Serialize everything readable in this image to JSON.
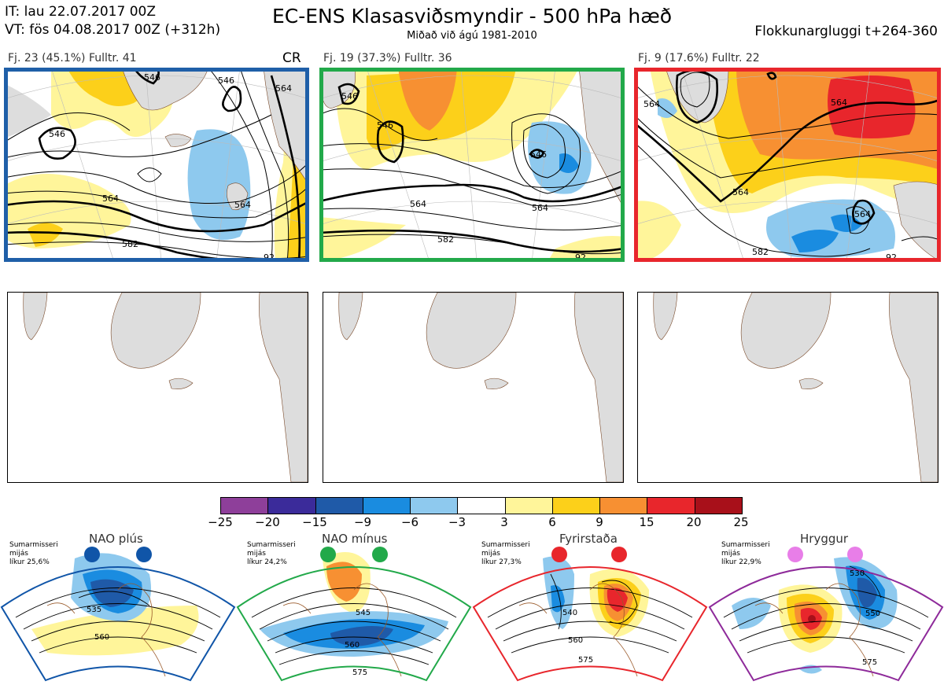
{
  "header": {
    "it": "IT: lau 22.07.2017 00Z",
    "vt": "VT: fös 04.08.2017 00Z  (+312h)",
    "title": "EC-ENS Klasasviðsmyndir - 500 hPa hæð",
    "subtitle": "Miðað við ágú 1981-2010",
    "window": "Flokkunargluggi t+264-360"
  },
  "clusters": [
    {
      "label": "Fj. 23 (45.1%)   Fulltr. 41",
      "tag": "CR",
      "border_color": "#1f5fa8",
      "contours": [
        "546",
        "546",
        "564",
        "564",
        "582",
        "92",
        "546",
        "564"
      ]
    },
    {
      "label": "Fj. 19 (37.3%)   Fulltr. 36",
      "tag": "",
      "border_color": "#22a94a",
      "contours": [
        "546",
        "546",
        "564",
        "582",
        "564",
        "546",
        "92"
      ]
    },
    {
      "label": "Fj. 9 (17.6%)   Fulltr. 22",
      "tag": "",
      "border_color": "#e8262c",
      "contours": [
        "564",
        "564",
        "564",
        "582",
        "564",
        "92"
      ]
    }
  ],
  "colorbar": {
    "ticks": [
      "−25",
      "−20",
      "−15",
      "−9",
      "−6",
      "−3",
      "3",
      "6",
      "9",
      "15",
      "20",
      "25"
    ],
    "colors": [
      "#8e3f9a",
      "#3b2b9a",
      "#1f5aa8",
      "#1a8ce0",
      "#8ec9ee",
      "#ffffff",
      "#fff59a",
      "#fcd01a",
      "#f79032",
      "#e8262c",
      "#a8101a"
    ]
  },
  "regimes": [
    {
      "title": "NAO plús",
      "line1": "Sumarmisseri",
      "line2": "mijás",
      "line3": "líkur 25,6%",
      "color": "#1055a8",
      "labels": [
        "535",
        "560"
      ]
    },
    {
      "title": "NAO mínus",
      "line1": "Sumarmisseri",
      "line2": "mijás",
      "line3": "líkur 24,2%",
      "color": "#22a94a",
      "labels": [
        "545",
        "560",
        "575"
      ]
    },
    {
      "title": "Fyrirstaða",
      "line1": "Sumarmisseri",
      "line2": "mijás",
      "line3": "líkur 27,3%",
      "color": "#e8262c",
      "labels": [
        "540",
        "560",
        "575"
      ]
    },
    {
      "title": "Hryggur",
      "line1": "Sumarmisseri",
      "line2": "mijás",
      "line3": "líkur 22,9%",
      "color": "#e87ee8",
      "labels": [
        "530",
        "550",
        "575"
      ]
    }
  ]
}
